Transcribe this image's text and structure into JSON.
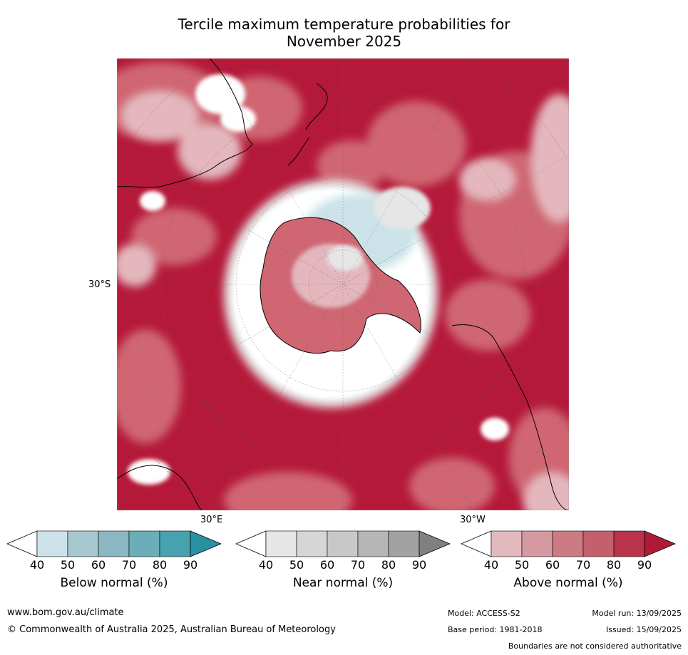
{
  "title": {
    "line1": "Tercile maximum temperature probabilities for",
    "line2": "November 2025"
  },
  "map": {
    "projection": "south-polar-stereographic",
    "lat_label": "30°S",
    "lon_labels": {
      "east": "30°E",
      "west": "30°W"
    },
    "colors": {
      "ocean_above_dark": "#b5193a",
      "above_mid": "#cf6672",
      "above_light": "#e3b7bd",
      "near_white": "#ffffff",
      "near_light": "#e6e6e6",
      "below_light": "#cbe2e8",
      "coast": "#000000"
    }
  },
  "legend": [
    {
      "id": "below",
      "label": "Below normal (%)",
      "ticks": [
        "40",
        "50",
        "60",
        "70",
        "80",
        "90"
      ],
      "colors": [
        "#ffffff",
        "#cce2e8",
        "#a8c8cf",
        "#8bb7c2",
        "#6baeb9",
        "#47a2b0",
        "#2b8fa2"
      ]
    },
    {
      "id": "near",
      "label": "Near normal (%)",
      "ticks": [
        "40",
        "50",
        "60",
        "70",
        "80",
        "90"
      ],
      "colors": [
        "#ffffff",
        "#e6e6e6",
        "#d6d6d6",
        "#c8c8c8",
        "#b6b6b6",
        "#a2a2a2",
        "#808080"
      ]
    },
    {
      "id": "above",
      "label": "Above normal (%)",
      "ticks": [
        "40",
        "50",
        "60",
        "70",
        "80",
        "90"
      ],
      "colors": [
        "#ffffff",
        "#e2b9be",
        "#d59aa1",
        "#cc7a84",
        "#c4606c",
        "#b9334a",
        "#b01a38"
      ]
    }
  ],
  "footer": {
    "website": "www.bom.gov.au/climate",
    "copyright": "© Commonwealth of Australia 2025, Australian Bureau of Meteorology",
    "model": "Model: ACCESS-S2",
    "model_run": "Model run: 13/09/2025",
    "base_period": "Base period: 1981-2018",
    "issued": "Issued: 15/09/2025",
    "disclaimer": "Boundaries are not considered authoritative"
  }
}
